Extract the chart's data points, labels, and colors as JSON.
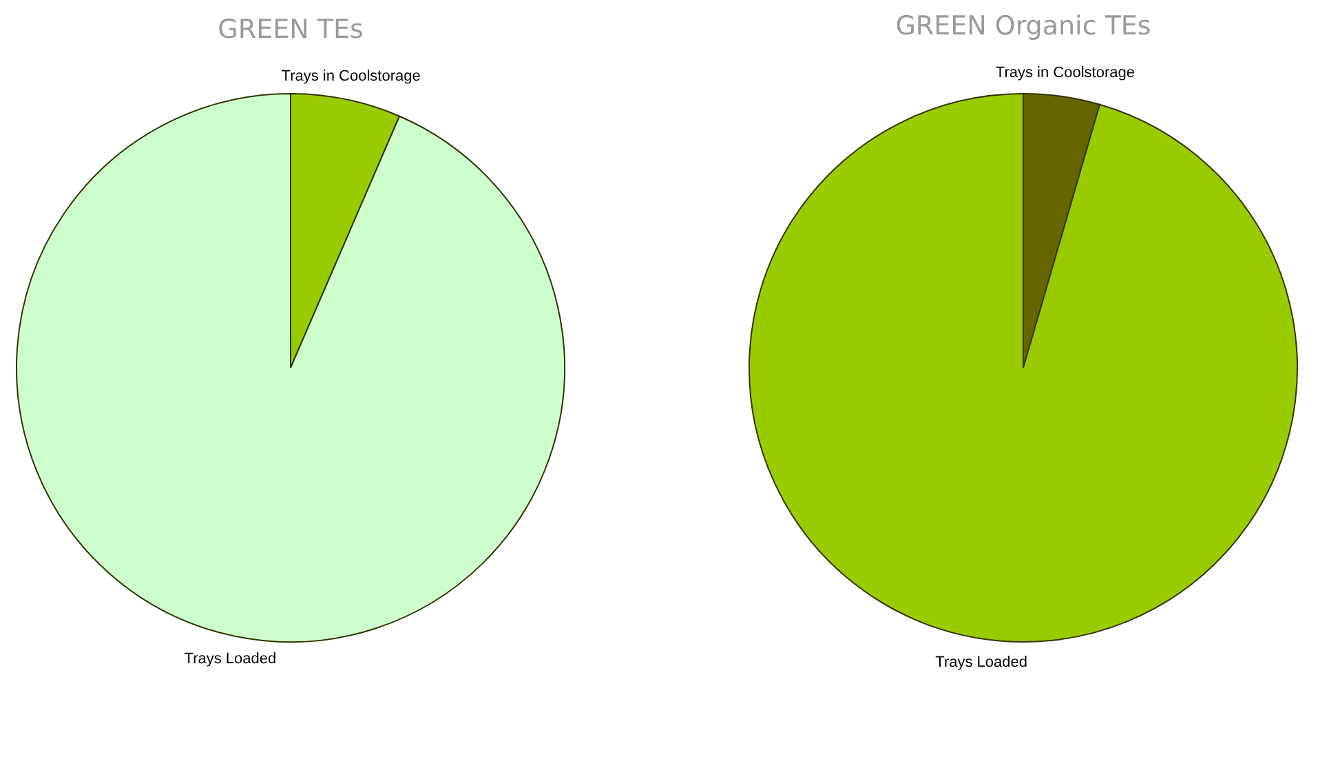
{
  "chart_data": [
    {
      "type": "pie",
      "title": "GREEN TEs",
      "categories": [
        "Trays in Coolstorage",
        "Trays Loaded"
      ],
      "values": [
        6.5,
        93.5
      ],
      "colors": [
        "#99cc00",
        "#ccffcc"
      ]
    },
    {
      "type": "pie",
      "title": "GREEN Organic TEs",
      "categories": [
        "Trays in Coolstorage",
        "Trays Loaded"
      ],
      "values": [
        4.5,
        95.5
      ],
      "colors": [
        "#666600",
        "#99cc00"
      ]
    }
  ]
}
